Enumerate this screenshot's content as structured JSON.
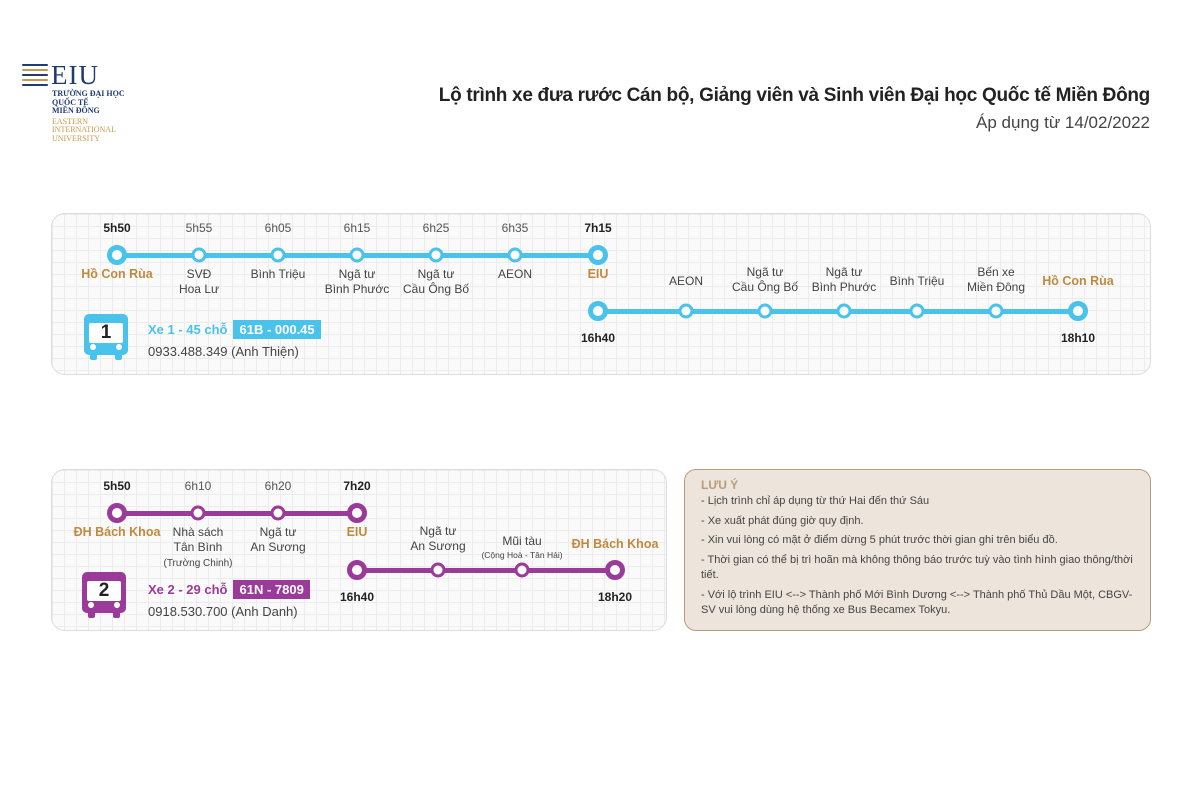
{
  "logo": {
    "name": "EIU",
    "vn_lines": [
      "TRƯỜNG ĐẠI HỌC",
      "QUỐC TẾ",
      "MIỀN ĐÔNG"
    ],
    "en_lines": [
      "EASTERN",
      "INTERNATIONAL",
      "UNIVERSITY"
    ]
  },
  "header": {
    "title": "Lộ trình xe đưa rước Cán bộ, Giảng viên và Sinh viên Đại học Quốc tế Miền Đông",
    "subtitle": "Áp dụng từ 14/02/2022"
  },
  "route1": {
    "morning_times": [
      "5h50",
      "5h55",
      "6h05",
      "6h15",
      "6h25",
      "6h35",
      "7h15"
    ],
    "morning_stops": [
      "Hồ Con Rùa",
      "SVĐ\nHoa Lư",
      "Bình Triệu",
      "Ngã tư\nBình Phước",
      "Ngã tư\nCầu Ông Bố",
      "AEON",
      "EIU"
    ],
    "afternoon_stops": [
      "AEON",
      "Ngã tư\nCầu Ông Bố",
      "Ngã tư\nBình Phước",
      "Bình Triệu",
      "Bến xe\nMiền Đông",
      "Hồ Con Rùa"
    ],
    "afternoon_start_time": "16h40",
    "afternoon_end_time": "18h10",
    "bus_number": "1",
    "vehicle": "Xe 1 - 45 chỗ",
    "plate": "61B - 000.45",
    "phone": "0933.488.349 (Anh Thiện)",
    "color": "#49c3ec"
  },
  "route2": {
    "morning_times": [
      "5h50",
      "6h10",
      "6h20",
      "7h20"
    ],
    "morning_stops": [
      "ĐH Bách Khoa",
      "Nhà sách\nTân Bình",
      "Ngã tư\nAn Sương",
      "EIU"
    ],
    "morning_stop_note": "(Trường Chinh)",
    "afternoon_stops": [
      "Ngã tư\nAn Sương",
      "Mũi tàu",
      "ĐH Bách Khoa"
    ],
    "afternoon_stop_note": "(Cộng Hoà - Tân Hải)",
    "afternoon_start_time": "16h40",
    "afternoon_end_time": "18h20",
    "bus_number": "2",
    "vehicle": "Xe 2 - 29 chỗ",
    "plate": "61N - 7809",
    "phone": "0918.530.700 (Anh Danh)",
    "color": "#9b3b99"
  },
  "notes": {
    "title": "LƯU Ý",
    "items": [
      "- Lịch trình chỉ áp dụng từ thứ Hai đến thứ Sáu",
      "- Xe xuất phát đúng giờ quy định.",
      "- Xin vui lòng có mặt ở điểm dừng 5 phút trước thời gian ghi trên biểu đồ.",
      "- Thời gian có thể bị trì hoãn mà không thông báo trước tuỳ vào tình hình giao thông/thời tiết.",
      "- Với lộ trình EIU <--> Thành phố Mới Bình Dương <--> Thành phố Thủ Dầu Một, CBGV-SV vui lòng dùng hệ thống xe Bus Becamex Tokyu."
    ]
  }
}
